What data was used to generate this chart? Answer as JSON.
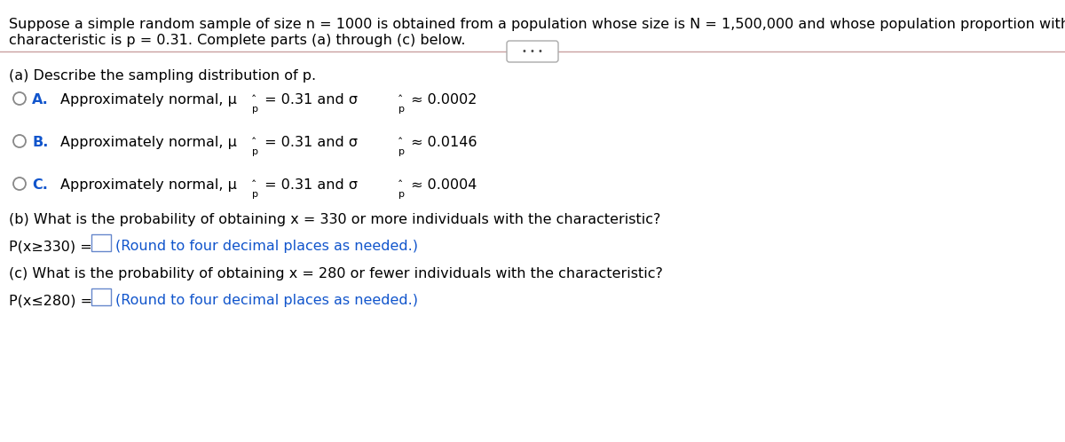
{
  "bg_color": "#ffffff",
  "text_color": "#000000",
  "blue_color": "#1155cc",
  "circle_color": "#888888",
  "divider_color": "#c9a0a0",
  "font_size": 11.5,
  "fig_w": 12.0,
  "fig_h": 4.98,
  "dpi": 100,
  "header_line1": "Suppose a simple random sample of size n = 1000 is obtained from a population whose size is N = 1,500,000 and whose population proportion with a specified",
  "header_line2": "characteristic is p = 0.31. Complete parts (a) through (c) below.",
  "part_a": "(a) Describe the sampling distribution of p.",
  "opt_A_pre": "A.  Approximately normal, μ",
  "opt_A_mid": " = 0.31 and σ",
  "opt_A_end": " ≈ 0.0002",
  "opt_B_pre": "B.  Approximately normal, μ",
  "opt_B_mid": " = 0.31 and σ",
  "opt_B_end": " ≈ 0.0146",
  "opt_C_pre": "C.  Approximately normal, μ",
  "opt_C_mid": " = 0.31 and σ",
  "opt_C_end": " ≈ 0.0004",
  "part_b_q": "(b) What is the probability of obtaining x = 330 or more individuals with the characteristic?",
  "part_b_p": "P(x≥330) = ",
  "part_b_hint": "(Round to four decimal places as needed.)",
  "part_c_q": "(c) What is the probability of obtaining x = 280 or fewer individuals with the characteristic?",
  "part_c_p": "P(x≤280) = ",
  "part_c_hint": "(Round to four decimal places as needed.)"
}
